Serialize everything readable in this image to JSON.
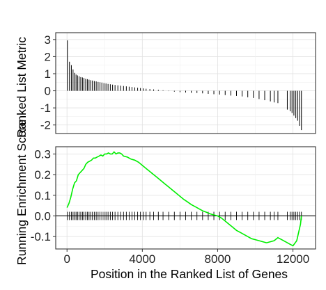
{
  "chart_data": [
    {
      "type": "bar",
      "panel": "top",
      "ylabel": "Ranked List Metric",
      "ylim": [
        -2.5,
        3.4
      ],
      "xlim": [
        -600,
        13200
      ],
      "yticks": [
        3,
        2,
        1,
        0,
        -1,
        -2
      ],
      "ytick_labels": [
        "3",
        "2",
        "1",
        "0",
        "-1",
        "-2"
      ],
      "grid": true,
      "series": [
        {
          "positions": [
            20,
            130,
            230,
            320,
            400,
            480,
            560,
            640,
            730,
            820,
            900,
            990,
            1080,
            1170,
            1260,
            1350,
            1450,
            1550,
            1650,
            1750,
            1850,
            1960,
            2070,
            2180,
            2300,
            2420,
            2550,
            2700,
            2850,
            3000,
            3150,
            3300,
            3450,
            3600,
            3750,
            3900,
            4050,
            4200,
            4400,
            4600,
            4850,
            5100,
            5400,
            5700,
            6000,
            6300,
            6600,
            6900,
            7200,
            7500,
            7800,
            8100,
            8400,
            8700,
            9000,
            9300,
            9600,
            9900,
            10200,
            10500,
            10800,
            11000,
            11200,
            11700,
            11850,
            11950,
            12050,
            12150,
            12250,
            12350,
            12450
          ],
          "values": [
            2.95,
            1.7,
            1.5,
            1.25,
            1.05,
            0.95,
            0.9,
            0.85,
            0.8,
            0.78,
            0.75,
            0.7,
            0.68,
            0.65,
            0.62,
            0.6,
            0.57,
            0.55,
            0.52,
            0.5,
            0.48,
            0.45,
            0.43,
            0.4,
            0.38,
            0.36,
            0.34,
            0.32,
            0.3,
            0.28,
            0.26,
            0.24,
            0.22,
            0.2,
            0.18,
            0.16,
            0.14,
            0.12,
            0.1,
            0.08,
            0.06,
            0.03,
            -0.02,
            -0.05,
            -0.08,
            -0.1,
            -0.12,
            -0.13,
            -0.15,
            -0.18,
            -0.2,
            -0.22,
            -0.25,
            -0.28,
            -0.3,
            -0.33,
            -0.38,
            -0.42,
            -0.48,
            -0.55,
            -0.62,
            -0.68,
            -0.72,
            -1.1,
            -1.2,
            -1.3,
            -1.45,
            -1.6,
            -1.75,
            -2.05,
            -2.3
          ]
        }
      ]
    },
    {
      "type": "line",
      "panel": "bottom",
      "xlabel": "Position in the Ranked List of Genes",
      "ylabel": "Running Enrichment Score",
      "xlim": [
        -600,
        13200
      ],
      "ylim": [
        -0.16,
        0.335
      ],
      "xticks": [
        0,
        4000,
        8000,
        12000
      ],
      "xtick_labels": [
        "0",
        "4000",
        "8000",
        "12000"
      ],
      "yticks": [
        0.3,
        0.2,
        0.1,
        0.0,
        -0.1
      ],
      "ytick_labels": [
        "0.3",
        "0.2",
        "0.1",
        "0.0",
        "-0.1"
      ],
      "grid": true,
      "line_color": "#00ee00",
      "series": [
        {
          "x": [
            0,
            100,
            200,
            300,
            400,
            500,
            600,
            700,
            800,
            900,
            1000,
            1100,
            1200,
            1300,
            1400,
            1500,
            1600,
            1700,
            1800,
            1900,
            2000,
            2100,
            2200,
            2300,
            2400,
            2500,
            2600,
            2700,
            2800,
            2900,
            3000,
            3200,
            3400,
            3600,
            3800,
            4000,
            4200,
            4400,
            4600,
            4800,
            5000,
            5200,
            5400,
            5600,
            5800,
            6000,
            6200,
            6400,
            6600,
            6800,
            7000,
            7200,
            7400,
            7600,
            7800,
            8000,
            8200,
            8400,
            8600,
            8800,
            9000,
            9200,
            9400,
            9600,
            9800,
            10000,
            10200,
            10400,
            10600,
            10800,
            11000,
            11200,
            11400,
            11600,
            11800,
            12000,
            12200,
            12300,
            12400,
            12450
          ],
          "y": [
            0.04,
            0.06,
            0.09,
            0.13,
            0.16,
            0.17,
            0.2,
            0.21,
            0.22,
            0.23,
            0.25,
            0.26,
            0.265,
            0.27,
            0.28,
            0.28,
            0.285,
            0.29,
            0.295,
            0.29,
            0.3,
            0.3,
            0.305,
            0.3,
            0.3,
            0.31,
            0.3,
            0.305,
            0.305,
            0.3,
            0.29,
            0.285,
            0.275,
            0.27,
            0.26,
            0.245,
            0.23,
            0.215,
            0.2,
            0.185,
            0.17,
            0.155,
            0.14,
            0.125,
            0.11,
            0.095,
            0.08,
            0.068,
            0.055,
            0.045,
            0.035,
            0.025,
            0.018,
            0.01,
            0.005,
            0.0,
            -0.01,
            -0.025,
            -0.04,
            -0.055,
            -0.07,
            -0.08,
            -0.09,
            -0.1,
            -0.11,
            -0.115,
            -0.12,
            -0.125,
            -0.13,
            -0.125,
            -0.12,
            -0.105,
            -0.115,
            -0.125,
            -0.135,
            -0.145,
            -0.12,
            -0.08,
            -0.04,
            0.0
          ]
        }
      ],
      "hits": [
        20,
        130,
        230,
        320,
        400,
        480,
        560,
        640,
        730,
        820,
        900,
        990,
        1080,
        1170,
        1260,
        1350,
        1450,
        1550,
        1650,
        1750,
        1850,
        1960,
        2070,
        2180,
        2300,
        2420,
        2550,
        2700,
        2850,
        3000,
        3150,
        3300,
        3450,
        3600,
        3750,
        3900,
        4050,
        4200,
        4400,
        4600,
        4850,
        5100,
        5400,
        5700,
        6000,
        6300,
        6600,
        6900,
        7200,
        7500,
        7800,
        8100,
        8400,
        8700,
        9000,
        9300,
        9600,
        9900,
        10200,
        10500,
        10800,
        11000,
        11200,
        11700,
        11850,
        11950,
        12050,
        12150,
        12250,
        12350,
        12450
      ]
    }
  ]
}
